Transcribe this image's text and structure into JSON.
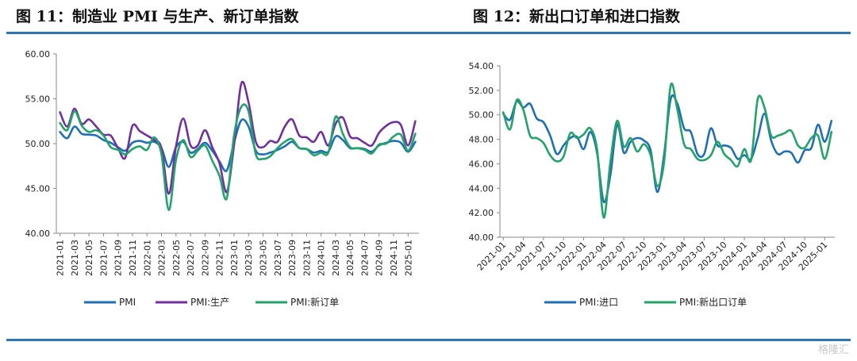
{
  "left_title": "图 11：制造业 PMI 与生产、新订单指数",
  "right_title": "图 12：新出口订单和进口指数",
  "watermark": "格隆汇",
  "colors": {
    "rule": "#2e75b6",
    "pmi": "#1f6fb8",
    "production": "#7030a0",
    "neworder": "#22a36a",
    "import": "#1f6fb8",
    "export": "#22a36a"
  },
  "chart_data": [
    {
      "type": "line",
      "title": "",
      "x": [
        "2021-01",
        "2021-02",
        "2021-03",
        "2021-04",
        "2021-05",
        "2021-06",
        "2021-07",
        "2021-08",
        "2021-09",
        "2021-10",
        "2021-11",
        "2021-12",
        "2022-01",
        "2022-02",
        "2022-03",
        "2022-04",
        "2022-05",
        "2022-06",
        "2022-07",
        "2022-08",
        "2022-09",
        "2022-10",
        "2022-11",
        "2022-12",
        "2023-01",
        "2023-02",
        "2023-03",
        "2023-04",
        "2023-05",
        "2023-06",
        "2023-07",
        "2023-08",
        "2023-09",
        "2023-10",
        "2023-11",
        "2023-12",
        "2024-01",
        "2024-02",
        "2024-03",
        "2024-04",
        "2024-05",
        "2024-06",
        "2024-07",
        "2024-08",
        "2024-09",
        "2024-10",
        "2024-11",
        "2024-12",
        "2025-01",
        "2025-02"
      ],
      "tick_labels": [
        "2021-01",
        "2021-03",
        "2021-05",
        "2021-07",
        "2021-09",
        "2021-11",
        "2022-01",
        "2022-03",
        "2022-05",
        "2022-07",
        "2022-09",
        "2022-11",
        "2023-01",
        "2023-03",
        "2023-05",
        "2023-07",
        "2023-09",
        "2023-11",
        "2024-01",
        "2024-03",
        "2024-05",
        "2024-07",
        "2024-09",
        "2024-11",
        "2025-01"
      ],
      "ylim": [
        40,
        60
      ],
      "yticks": [
        "40.00",
        "45.00",
        "50.00",
        "55.00",
        "60.00"
      ],
      "legend": "bottom",
      "series": [
        {
          "name": "PMI",
          "color": "#1f6fb8",
          "values": [
            51.3,
            50.6,
            51.9,
            51.1,
            51.0,
            50.9,
            50.4,
            50.1,
            49.6,
            49.2,
            50.1,
            50.3,
            50.1,
            50.2,
            49.5,
            47.4,
            49.6,
            50.2,
            49.0,
            49.4,
            50.1,
            49.2,
            48.0,
            47.0,
            50.1,
            52.6,
            51.9,
            49.2,
            48.8,
            49.0,
            49.3,
            49.7,
            50.2,
            49.5,
            49.4,
            49.0,
            49.2,
            49.1,
            50.8,
            50.4,
            49.5,
            49.5,
            49.4,
            49.1,
            49.8,
            50.1,
            50.3,
            50.1,
            49.1,
            50.2
          ]
        },
        {
          "name": "PMI:生产",
          "color": "#7030a0",
          "values": [
            53.5,
            51.9,
            53.9,
            52.2,
            52.7,
            51.9,
            51.0,
            50.9,
            49.5,
            48.4,
            52.0,
            51.4,
            50.9,
            50.4,
            49.5,
            44.4,
            49.7,
            52.8,
            49.8,
            49.8,
            51.5,
            49.6,
            47.8,
            44.6,
            49.8,
            56.7,
            54.6,
            50.2,
            49.6,
            50.3,
            50.2,
            51.9,
            52.7,
            50.9,
            50.7,
            50.2,
            51.3,
            49.8,
            52.2,
            52.9,
            50.8,
            50.6,
            50.1,
            49.8,
            51.2,
            52.0,
            52.4,
            52.1,
            49.8,
            52.5
          ]
        },
        {
          "name": "PMI:新订单",
          "color": "#22a36a",
          "values": [
            52.3,
            51.5,
            53.6,
            52.0,
            51.3,
            51.5,
            50.9,
            49.6,
            49.3,
            48.8,
            49.4,
            49.7,
            49.3,
            50.7,
            48.8,
            42.6,
            48.2,
            50.4,
            48.5,
            49.2,
            49.8,
            48.1,
            46.4,
            43.9,
            50.9,
            54.1,
            53.6,
            48.8,
            48.3,
            48.6,
            49.5,
            50.2,
            50.5,
            49.5,
            49.4,
            48.7,
            49.0,
            49.0,
            53.0,
            51.1,
            49.6,
            49.5,
            49.3,
            48.9,
            49.9,
            50.0,
            50.8,
            51.0,
            49.2,
            51.1
          ]
        }
      ]
    },
    {
      "type": "line",
      "title": "",
      "x": [
        "2021-01",
        "2021-02",
        "2021-03",
        "2021-04",
        "2021-05",
        "2021-06",
        "2021-07",
        "2021-08",
        "2021-09",
        "2021-10",
        "2021-11",
        "2021-12",
        "2022-01",
        "2022-02",
        "2022-03",
        "2022-04",
        "2022-05",
        "2022-06",
        "2022-07",
        "2022-08",
        "2022-09",
        "2022-10",
        "2022-11",
        "2022-12",
        "2023-01",
        "2023-02",
        "2023-03",
        "2023-04",
        "2023-05",
        "2023-06",
        "2023-07",
        "2023-08",
        "2023-09",
        "2023-10",
        "2023-11",
        "2023-12",
        "2024-01",
        "2024-02",
        "2024-03",
        "2024-04",
        "2024-05",
        "2024-06",
        "2024-07",
        "2024-08",
        "2024-09",
        "2024-10",
        "2024-11",
        "2024-12",
        "2025-01",
        "2025-02"
      ],
      "tick_labels": [
        "2021-01",
        "2021-04",
        "2021-07",
        "2021-10",
        "2022-01",
        "2022-04",
        "2022-07",
        "2022-10",
        "2023-01",
        "2023-04",
        "2023-07",
        "2023-10",
        "2024-01",
        "2024-04",
        "2024-07",
        "2024-10",
        "2025-01"
      ],
      "ylim": [
        40,
        54
      ],
      "yticks": [
        "40.00",
        "42.00",
        "44.00",
        "46.00",
        "48.00",
        "50.00",
        "52.00",
        "54.00"
      ],
      "legend": "bottom",
      "series": [
        {
          "name": "PMI:进口",
          "color": "#1f6fb8",
          "values": [
            50.1,
            49.6,
            51.1,
            50.6,
            50.9,
            49.7,
            49.4,
            48.3,
            46.8,
            47.5,
            48.1,
            48.2,
            47.2,
            48.6,
            46.9,
            42.9,
            45.1,
            49.2,
            46.9,
            47.8,
            48.1,
            47.9,
            47.1,
            43.7,
            46.7,
            51.3,
            50.9,
            48.9,
            48.6,
            46.8,
            46.8,
            48.9,
            47.5,
            47.5,
            47.3,
            46.4,
            46.7,
            46.4,
            48.1,
            50.1,
            47.9,
            46.8,
            47.0,
            46.9,
            46.1,
            47.1,
            47.3,
            49.2,
            47.8,
            49.5
          ]
        },
        {
          "name": "PMI:新出口订单",
          "color": "#22a36a",
          "values": [
            50.2,
            48.8,
            51.2,
            50.4,
            48.3,
            48.1,
            47.7,
            46.7,
            46.2,
            46.6,
            48.5,
            48.1,
            48.4,
            48.9,
            47.2,
            41.6,
            46.2,
            49.5,
            47.4,
            48.1,
            47.0,
            47.6,
            46.7,
            44.2,
            46.1,
            52.4,
            50.4,
            47.6,
            47.2,
            46.4,
            46.3,
            46.7,
            47.8,
            46.8,
            46.3,
            45.8,
            47.2,
            46.3,
            51.3,
            50.6,
            48.3,
            48.3,
            48.5,
            48.7,
            47.5,
            47.3,
            48.1,
            48.3,
            46.4,
            48.6
          ]
        }
      ]
    }
  ]
}
